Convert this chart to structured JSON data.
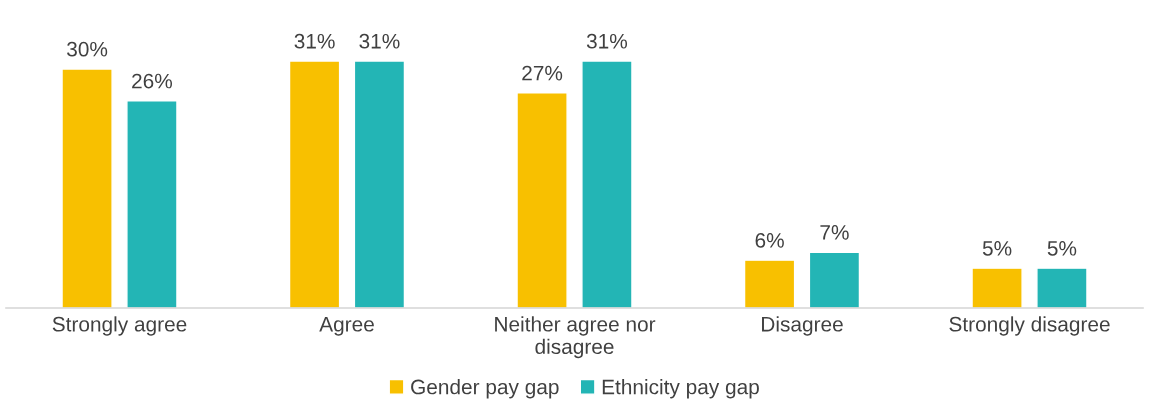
{
  "chart_data": {
    "type": "bar",
    "categories": [
      "Strongly agree",
      "Agree",
      "Neither agree nor\ndisagree",
      "Disagree",
      "Strongly disagree"
    ],
    "series": [
      {
        "name": "Gender pay gap",
        "color": "#f8c000",
        "values": [
          30,
          31,
          27,
          6,
          5
        ],
        "value_labels": [
          "30%",
          "31%",
          "27%",
          "6%",
          "5%"
        ]
      },
      {
        "name": "Ethnicity pay gap",
        "color": "#23b5b5",
        "values": [
          26,
          31,
          31,
          7,
          5
        ],
        "value_labels": [
          "26%",
          "31%",
          "31%",
          "7%",
          "5%"
        ]
      }
    ],
    "legend": "bottom",
    "grid": false
  }
}
